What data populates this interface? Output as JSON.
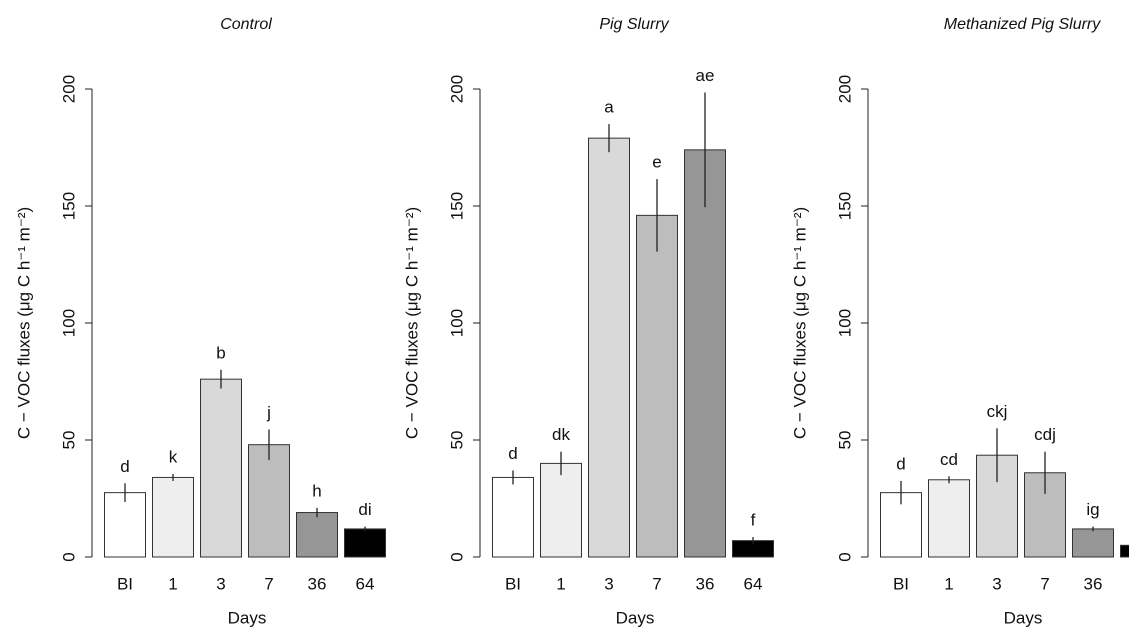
{
  "chart_data": [
    {
      "type": "bar",
      "title": "Control",
      "xlabel": "Days",
      "ylabel": "C − VOC fluxes (μg C h⁻¹ m⁻²)",
      "categories": [
        "BI",
        "1",
        "3",
        "7",
        "36",
        "64"
      ],
      "values": [
        27.5,
        34,
        76,
        48,
        19,
        12
      ],
      "errors": [
        4,
        1.5,
        4,
        6.5,
        2,
        1
      ],
      "letters": [
        "d",
        "k",
        "b",
        "j",
        "h",
        "di"
      ],
      "colors": [
        "#ffffff",
        "#eeeeee",
        "#d9d9d9",
        "#bdbdbd",
        "#969696",
        "#000000"
      ],
      "ylim": [
        0,
        200
      ],
      "yticks": [
        0,
        50,
        100,
        150,
        200
      ]
    },
    {
      "type": "bar",
      "title": "Pig Slurry",
      "xlabel": "Days",
      "ylabel": "C − VOC fluxes (μg C h⁻¹ m⁻²)",
      "categories": [
        "BI",
        "1",
        "3",
        "7",
        "36",
        "64"
      ],
      "values": [
        34,
        40,
        179,
        146,
        174,
        7
      ],
      "errors": [
        3,
        5,
        6,
        15.5,
        24.5,
        1.5
      ],
      "letters": [
        "d",
        "dk",
        "a",
        "e",
        "ae",
        "f"
      ],
      "colors": [
        "#ffffff",
        "#eeeeee",
        "#d9d9d9",
        "#bdbdbd",
        "#969696",
        "#000000"
      ],
      "ylim": [
        0,
        200
      ],
      "yticks": [
        0,
        50,
        100,
        150,
        200
      ]
    },
    {
      "type": "bar",
      "title": "Methanized Pig Slurry",
      "xlabel": "Days",
      "ylabel": "C − VOC fluxes (μg C h⁻¹ m⁻²)",
      "categories": [
        "BI",
        "1",
        "3",
        "7",
        "36",
        null
      ],
      "values": [
        27.5,
        33,
        43.5,
        36,
        12,
        5
      ],
      "errors": [
        5,
        1.5,
        11.5,
        9,
        1,
        null
      ],
      "letters": [
        "d",
        "cd",
        "ckj",
        "cdj",
        "ig",
        null
      ],
      "colors": [
        "#ffffff",
        "#eeeeee",
        "#d9d9d9",
        "#bdbdbd",
        "#969696",
        "#000000"
      ],
      "ylim": [
        0,
        200
      ],
      "yticks": [
        0,
        50,
        100,
        150,
        200
      ]
    }
  ]
}
